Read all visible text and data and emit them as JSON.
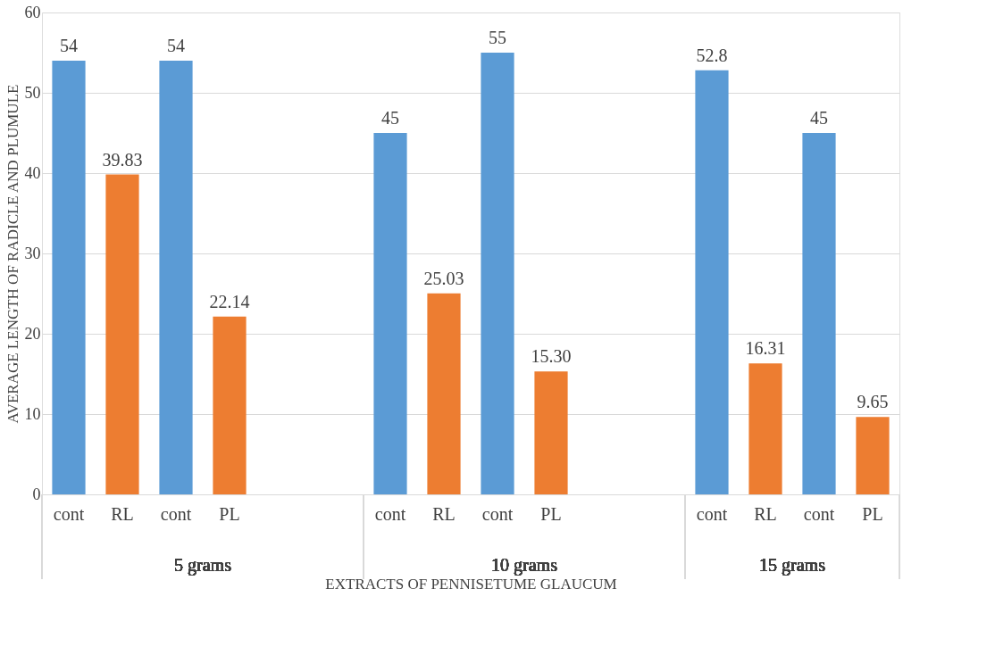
{
  "chart_data": {
    "type": "bar",
    "xlabel": "EXTRACTS OF PENNISETUME GLAUCUM",
    "ylabel": "AVERAGE LENGTH OF RADICLE AND PLUMULE",
    "categories": [
      "cont",
      "RL",
      "cont",
      "PL",
      null,
      null,
      "cont",
      "RL",
      "cont",
      "PL",
      null,
      null,
      "cont",
      "RL",
      "cont",
      "PL"
    ],
    "values": [
      54,
      39.83,
      54,
      22.14,
      null,
      null,
      45,
      25.03,
      55,
      15.3,
      null,
      null,
      52.8,
      16.31,
      45,
      9.65
    ],
    "colors": [
      "#5b9bd5",
      "#ed7d31",
      "#5b9bd5",
      "#ed7d31",
      "#5b9bd5",
      "#ed7d31",
      "#5b9bd5",
      "#ed7d31",
      "#5b9bd5",
      "#ed7d31",
      "#5b9bd5",
      "#ed7d31",
      "#5b9bd5",
      "#ed7d31",
      "#5b9bd5",
      "#ed7d31"
    ],
    "value_labels": [
      "54",
      "39.83",
      "54",
      "22.14",
      null,
      null,
      "45",
      "25.03",
      "55",
      "15.30",
      null,
      null,
      "52.8",
      "16.31",
      "45",
      "9.65"
    ],
    "annotations": [
      "5 grams",
      "10 grams",
      "15 grams"
    ],
    "ylim": [
      0,
      60
    ],
    "yticks": [
      0,
      10,
      20,
      30,
      40,
      50,
      60
    ],
    "grid": "y"
  }
}
